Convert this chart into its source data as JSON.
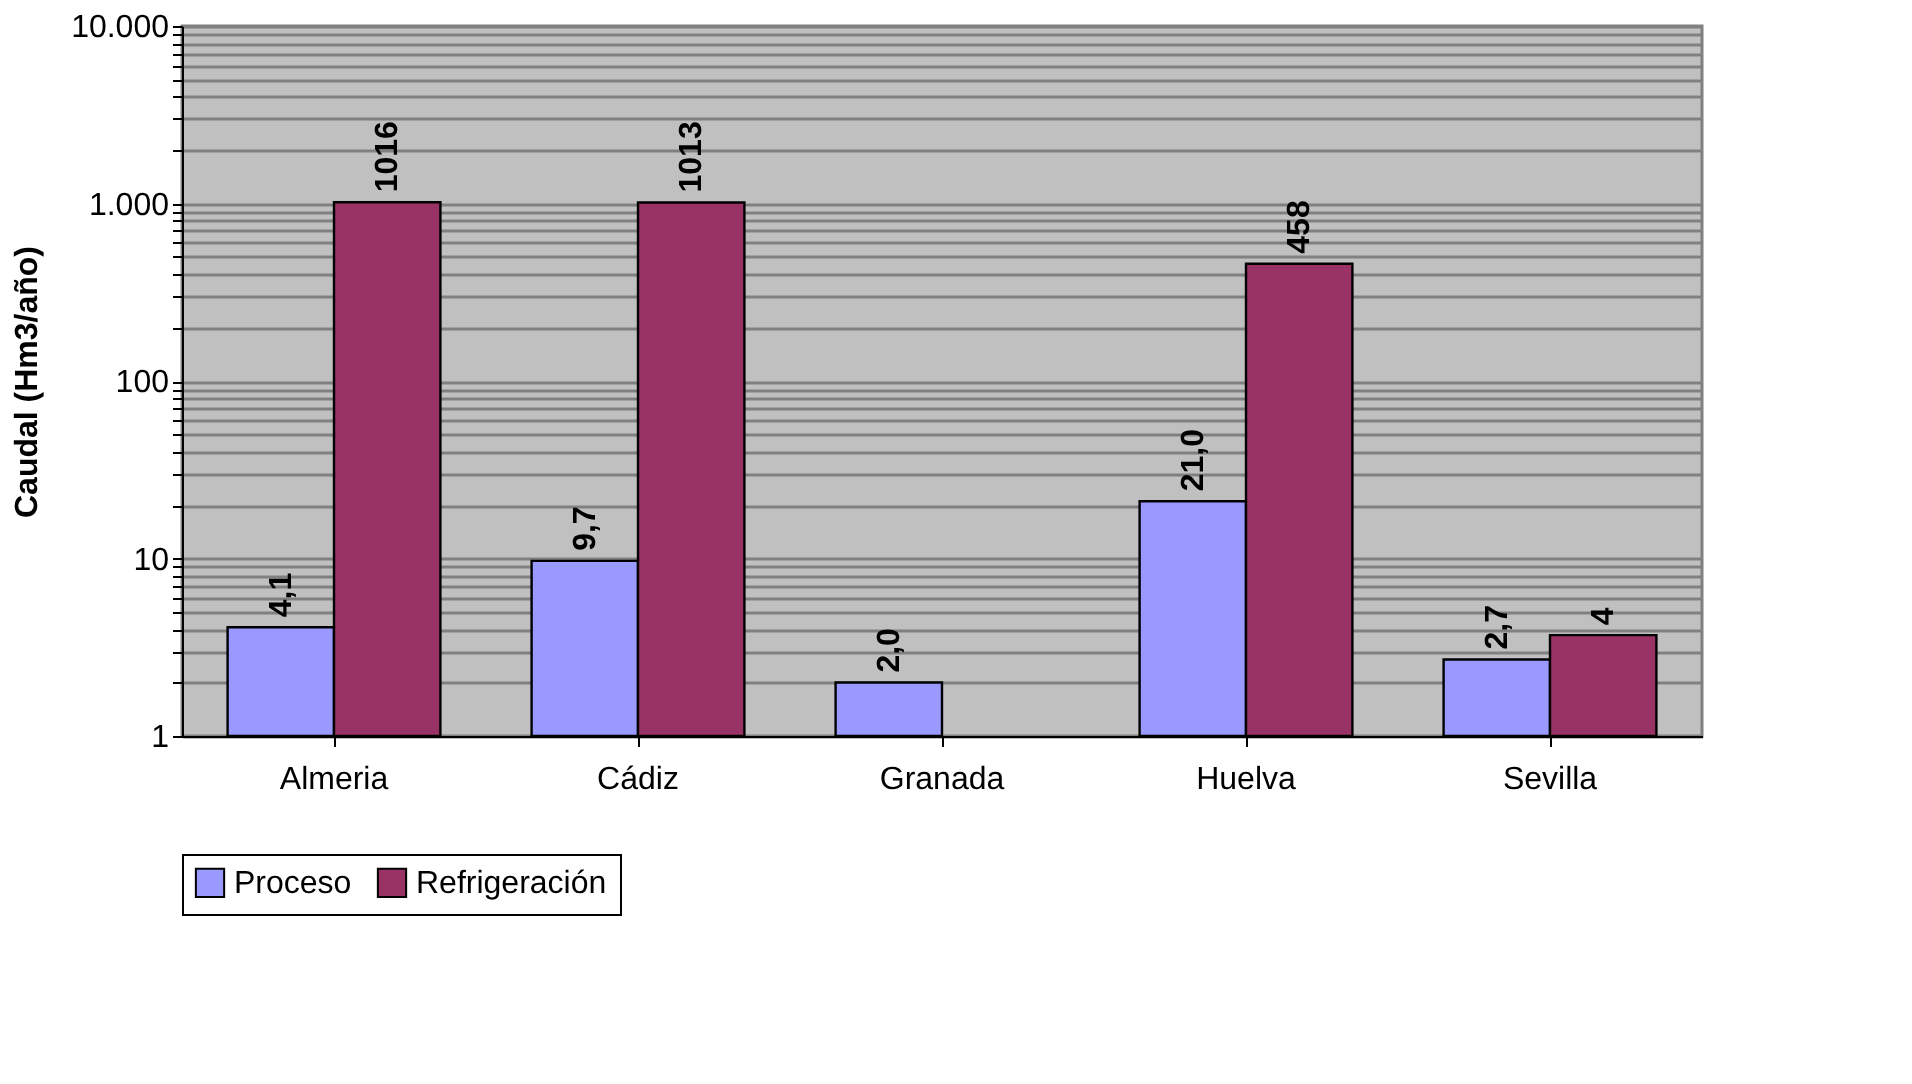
{
  "chart_data": {
    "type": "bar",
    "ylabel": "Caudal (Hm3/año)",
    "categories": [
      "Almeria",
      "Cádiz",
      "Granada",
      "Huelva",
      "Sevilla"
    ],
    "series": [
      {
        "name": "Proceso",
        "color": "#9999ff",
        "values": [
          4.1,
          9.7,
          2.0,
          21.0,
          2.7
        ],
        "value_labels": [
          "4,1",
          "9,7",
          "2,0",
          "21,0",
          "2,7"
        ]
      },
      {
        "name": "Refrigeración",
        "color": "#993366",
        "values": [
          1016,
          1013,
          null,
          458,
          3.7
        ],
        "value_labels": [
          "1016",
          "1013",
          null,
          "458",
          "4"
        ]
      }
    ],
    "log": true,
    "ylim": [
      1,
      10000
    ],
    "yticks": [
      1,
      {
        "value": 2,
        "label": null
      },
      {
        "value": 3,
        "label": null
      },
      {
        "value": 4,
        "label": null
      },
      {
        "value": 5,
        "label": null
      },
      {
        "value": 6,
        "label": null
      },
      {
        "value": 7,
        "label": null
      },
      {
        "value": 8,
        "label": null
      },
      {
        "value": 9,
        "label": null
      },
      10,
      {
        "value": 20,
        "label": null
      },
      {
        "value": 30,
        "label": null
      },
      {
        "value": 40,
        "label": null
      },
      {
        "value": 50,
        "label": null
      },
      {
        "value": 60,
        "label": null
      },
      {
        "value": 70,
        "label": null
      },
      {
        "value": 80,
        "label": null
      },
      {
        "value": 90,
        "label": null
      },
      100,
      {
        "value": 200,
        "label": null
      },
      {
        "value": 300,
        "label": null
      },
      {
        "value": 400,
        "label": null
      },
      {
        "value": 500,
        "label": null
      },
      {
        "value": 600,
        "label": null
      },
      {
        "value": 700,
        "label": null
      },
      {
        "value": 800,
        "label": null
      },
      {
        "value": 900,
        "label": null
      },
      {
        "value": 1000,
        "label": "1.000"
      },
      {
        "value": 2000,
        "label": null
      },
      {
        "value": 3000,
        "label": null
      },
      {
        "value": 4000,
        "label": null
      },
      {
        "value": 5000,
        "label": null
      },
      {
        "value": 6000,
        "label": null
      },
      {
        "value": 7000,
        "label": null
      },
      {
        "value": 8000,
        "label": null
      },
      {
        "value": 9000,
        "label": null
      },
      {
        "value": 10000,
        "label": "10.000"
      }
    ],
    "grid": "y",
    "legend": "bottom"
  }
}
